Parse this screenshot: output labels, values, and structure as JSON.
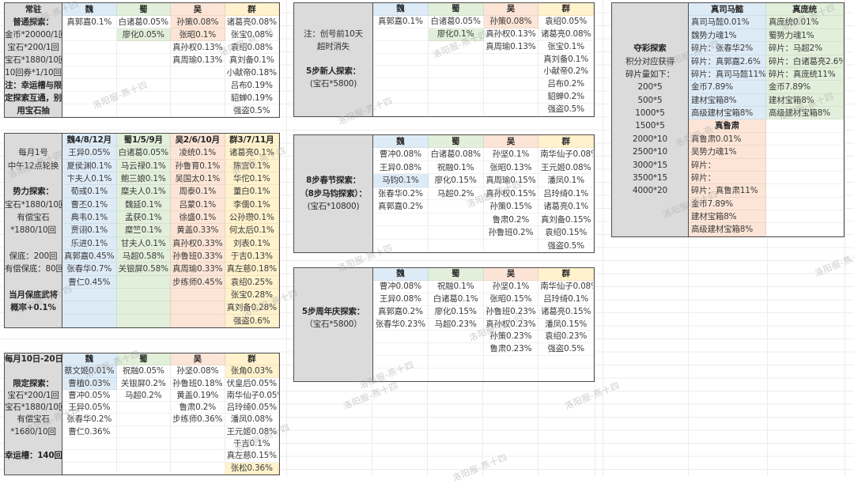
{
  "watermark": {
    "text": "洛阳服-燕十四"
  },
  "faction_colors": {
    "wei": "#DDEBF7",
    "shu": "#E2EFDA",
    "wu": "#FCE4D6",
    "qun": "#FFF2CC",
    "label": "#DBDBDB"
  },
  "blocks": [
    {
      "id": "permanent",
      "label_lines": [
        {
          "t": "常驻",
          "b": true
        },
        {
          "t": "普通探索：",
          "b": true
        },
        "金币*20000/1回",
        "宝石*200/1回",
        "宝石*1880/10回",
        "10回券*1/10回",
        {
          "t": "注：幸运槽与限",
          "b": true
        },
        {
          "t": "定探索互通，别",
          "b": true
        },
        {
          "t": "用宝石抽",
          "b": true
        }
      ],
      "columns": [
        {
          "cells": [
            {
              "t": "魏",
              "hl": "wei",
              "b": true
            },
            "真郭嘉0.1%",
            "",
            "",
            "",
            "",
            "",
            "",
            ""
          ]
        },
        {
          "cells": [
            {
              "t": "蜀",
              "hl": "shu",
              "b": true
            },
            "白诸葛0.05%",
            {
              "t": "廖化0.05%",
              "hl": "shu"
            },
            "",
            "",
            "",
            "",
            "",
            ""
          ]
        },
        {
          "cells": [
            {
              "t": "吴",
              "hl": "wu",
              "b": true
            },
            {
              "t": "孙策0.08%",
              "hl": "wu"
            },
            {
              "t": "张昭0.1%",
              "hl": "wu"
            },
            "真孙权0.13%",
            "真周瑜0.13%",
            "",
            "",
            "",
            ""
          ]
        },
        {
          "cells": [
            {
              "t": "群",
              "hl": "qun",
              "b": true
            },
            "诸葛亮0.08%",
            "张宝0.08%",
            "袁绍0.08%",
            "真刘备0.1%",
            "小献帝0.18%",
            "吕布0.19%",
            "貂蝉0.19%",
            "强盗0.5%"
          ]
        }
      ]
    },
    {
      "id": "faction",
      "label_lines": [
        "",
        "每月1号",
        "中午12点轮换",
        "",
        {
          "t": "势力探索：",
          "b": true
        },
        "宝石*1880/10回",
        "有偿宝石",
        "*1880/10回",
        "",
        "保底：200回",
        "有偿保底：80回",
        "",
        {
          "t": "当月保底武将",
          "b": true
        },
        {
          "t": "概率+0.1%",
          "b": true
        },
        ""
      ],
      "columns": [
        {
          "fill": "wei",
          "cells": [
            {
              "t": "魏4/8/12月",
              "hl": "wei",
              "b": true
            },
            {
              "t": "王异0.05%",
              "hl": "wei"
            },
            {
              "t": "夏侯渊0.1%",
              "hl": "wei"
            },
            {
              "t": "卞夫人0.1%",
              "hl": "wei"
            },
            {
              "t": "荀彧0.1%",
              "hl": "wei"
            },
            {
              "t": "曹丕0.1%",
              "hl": "wei"
            },
            {
              "t": "典韦0.1%",
              "hl": "wei"
            },
            {
              "t": "贾诩0.1%",
              "hl": "wei"
            },
            {
              "t": "乐进0.1%",
              "hl": "wei"
            },
            {
              "t": "真郭嘉0.45%",
              "hl": "wei"
            },
            {
              "t": "张春华0.7%",
              "hl": "wei"
            },
            {
              "t": "曹仁0.45%",
              "hl": "wei"
            },
            {
              "t": "",
              "hl": "wei"
            },
            {
              "t": "",
              "hl": "wei"
            },
            {
              "t": "",
              "hl": "wei"
            }
          ]
        },
        {
          "fill": "shu",
          "cells": [
            {
              "t": "蜀1/5/9月",
              "hl": "shu",
              "b": true
            },
            {
              "t": "白诸葛0.05%",
              "hl": "shu"
            },
            {
              "t": "马云禄0.1%",
              "hl": "shu"
            },
            {
              "t": "鲍三娘0.1%",
              "hl": "shu"
            },
            {
              "t": "糜夫人0.1%",
              "hl": "shu"
            },
            {
              "t": "魏延0.1%",
              "hl": "shu"
            },
            {
              "t": "孟获0.1%",
              "hl": "shu"
            },
            {
              "t": "糜竺0.1%",
              "hl": "shu"
            },
            {
              "t": "甘夫人0.1%",
              "hl": "shu"
            },
            {
              "t": "马超0.58%",
              "hl": "shu"
            },
            {
              "t": "关银屏0.58%",
              "hl": "shu"
            },
            {
              "t": "",
              "hl": "shu"
            },
            {
              "t": "",
              "hl": "shu"
            },
            {
              "t": "",
              "hl": "shu"
            },
            {
              "t": "",
              "hl": "shu"
            }
          ]
        },
        {
          "fill": "wu",
          "cells": [
            {
              "t": "吴2/6/10月",
              "hl": "wu",
              "b": true
            },
            {
              "t": "凌统0.1%",
              "hl": "wu"
            },
            {
              "t": "孙鲁育0.1%",
              "hl": "wu"
            },
            {
              "t": "吴国太0.1%",
              "hl": "wu"
            },
            {
              "t": "周泰0.1%",
              "hl": "wu"
            },
            {
              "t": "吕蒙0.1%",
              "hl": "wu"
            },
            {
              "t": "徐盛0.1%",
              "hl": "wu"
            },
            {
              "t": "黄盖0.33%",
              "hl": "wu"
            },
            {
              "t": "真孙权0.33%",
              "hl": "wu"
            },
            {
              "t": "孙鲁班0.33%",
              "hl": "wu"
            },
            {
              "t": "真周瑜0.33%",
              "hl": "wu"
            },
            {
              "t": "步练师0.45%",
              "hl": "wu"
            },
            {
              "t": "",
              "hl": "wu"
            },
            {
              "t": "",
              "hl": "wu"
            },
            {
              "t": "",
              "hl": "wu"
            }
          ]
        },
        {
          "fill": "qun",
          "cells": [
            {
              "t": "群3/7/11月",
              "hl": "qun",
              "b": true
            },
            {
              "t": "诸葛亮0.1%",
              "hl": "qun"
            },
            {
              "t": "陈宫0.1%",
              "hl": "qun"
            },
            {
              "t": "华佗0.1%",
              "hl": "qun"
            },
            {
              "t": "董白0.1%",
              "hl": "qun"
            },
            {
              "t": "李儒0.1%",
              "hl": "qun"
            },
            {
              "t": "公孙瓒0.1%",
              "hl": "qun"
            },
            {
              "t": "何太后0.1%",
              "hl": "qun"
            },
            {
              "t": "刘表0.1%",
              "hl": "qun"
            },
            {
              "t": "于吉0.13%",
              "hl": "qun"
            },
            {
              "t": "真左慈0.18%",
              "hl": "qun"
            },
            {
              "t": "袁绍0.25%",
              "hl": "qun"
            },
            {
              "t": "张宝0.28%",
              "hl": "qun"
            },
            {
              "t": "真刘备0.28%",
              "hl": "qun"
            },
            {
              "t": "强盗0.6%",
              "hl": "qun"
            }
          ]
        }
      ]
    },
    {
      "id": "limited",
      "label_lines": [
        {
          "t": "每月10日-20日",
          "b": true
        },
        "",
        {
          "t": "限定探索：",
          "b": true
        },
        "宝石*200/1回",
        "宝石*1880/10回",
        "有偿宝石",
        "*1680/10回",
        "",
        {
          "t": "幸运槽：140回",
          "b": true
        },
        ""
      ],
      "columns": [
        {
          "cells": [
            {
              "t": "魏",
              "hl": "wei",
              "b": true
            },
            {
              "t": "蔡文姬0.01%",
              "hl": "wei"
            },
            {
              "t": "曹植0.03%",
              "hl": "wei"
            },
            "曹冲0.05%",
            "王异0.05%",
            "张春华0.2%",
            "曹仁0.36%",
            "",
            "",
            ""
          ]
        },
        {
          "cells": [
            {
              "t": "蜀",
              "hl": "shu",
              "b": true
            },
            "祝融0.05%",
            "关银屏0.2%",
            "马超0.2%",
            "",
            "",
            "",
            "",
            "",
            ""
          ]
        },
        {
          "cells": [
            {
              "t": "吴",
              "hl": "wu",
              "b": true
            },
            "孙坚0.08%",
            "孙鲁班0.18%",
            "黄盖0.19%",
            "鲁肃0.2%",
            "步练师0.36%",
            "",
            "",
            "",
            ""
          ]
        },
        {
          "cells": [
            {
              "t": "群",
              "hl": "qun",
              "b": true
            },
            {
              "t": "张角0.03%",
              "hl": "qun"
            },
            "伏皇后0.05%",
            "南华仙子0.05%",
            "吕玲绮0.05%",
            "潘凤0.08%",
            "王元姬0.08%",
            "于吉0.1%",
            "真左慈0.15%",
            {
              "t": "张松0.36%",
              "hl": "qun"
            }
          ]
        }
      ]
    },
    {
      "id": "newbie",
      "label_lines": [
        "",
        "",
        "注：创号前10天",
        "超时消失",
        "",
        {
          "t": "5步新人探索：",
          "b": true
        },
        "(宝石*5800)",
        "",
        ""
      ],
      "columns": [
        {
          "cells": [
            {
              "t": "魏",
              "hl": "wei",
              "b": true
            },
            "真郭嘉0.1%",
            "",
            "",
            "",
            "",
            "",
            "",
            ""
          ]
        },
        {
          "cells": [
            {
              "t": "蜀",
              "hl": "shu",
              "b": true
            },
            "白诸葛0.05%",
            {
              "t": "廖化0.1%",
              "hl": "shu"
            },
            "",
            "",
            "",
            "",
            "",
            ""
          ]
        },
        {
          "cells": [
            {
              "t": "吴",
              "hl": "wu",
              "b": true
            },
            {
              "t": "孙策0.08%",
              "hl": "wu"
            },
            "真孙权0.13%",
            "真周瑜0.13%",
            "",
            "",
            "",
            "",
            ""
          ]
        },
        {
          "cells": [
            {
              "t": "群",
              "hl": "qun",
              "b": true
            },
            "袁绍0.05%",
            "诸葛亮0.08%",
            "张宝0.1%",
            "真刘备0.1%",
            "小献帝0.2%",
            "吕布0.2%",
            "貂蝉0.2%",
            "强盗0.5%"
          ]
        }
      ]
    },
    {
      "id": "spring",
      "label_lines": [
        "",
        "",
        "",
        {
          "t": "8步春节探索：",
          "b": true
        },
        {
          "t": "（8步马钧探索）：",
          "b": true
        },
        "(宝石*10800)",
        "",
        "",
        ""
      ],
      "columns": [
        {
          "cells": [
            {
              "t": "魏",
              "hl": "wei",
              "b": true
            },
            "曹冲0.08%",
            "王异0.08%",
            {
              "t": "马钧0.1%",
              "hl": "wei"
            },
            "张春华0.2%",
            "真郭嘉0.2%",
            "",
            "",
            ""
          ]
        },
        {
          "cells": [
            {
              "t": "蜀",
              "hl": "shu",
              "b": true
            },
            "白诸葛0.08%",
            "祝融0.1%",
            "廖化0.15%",
            "马超0.2%",
            "",
            "",
            "",
            ""
          ]
        },
        {
          "cells": [
            {
              "t": "吴",
              "hl": "wu",
              "b": true
            },
            "孙坚0.1%",
            "张昭0.13%",
            "真周瑜0.15%",
            "真孙权0.15%",
            "孙策0.15%",
            "鲁肃0.2%",
            "孙鲁班0.2%",
            ""
          ]
        },
        {
          "cells": [
            {
              "t": "群",
              "hl": "qun",
              "b": true
            },
            "南华仙子0.08%",
            "王元姬0.08%",
            "潘凤0.1%",
            "吕玲绮0.1%",
            "诸葛亮0.1%",
            "真刘备0.15%",
            "袁绍0.15%",
            "强盗0.5%"
          ]
        }
      ]
    },
    {
      "id": "anniversary",
      "label_lines": [
        "",
        "",
        "",
        {
          "t": "5步周年庆探索：",
          "b": true
        },
        "（宝石*5800）",
        "",
        "",
        "",
        ""
      ],
      "columns": [
        {
          "cells": [
            {
              "t": "魏",
              "hl": "wei",
              "b": true
            },
            "曹冲0.08%",
            "王异0.08%",
            "真郭嘉0.2%",
            "张春华0.23%",
            "",
            "",
            "",
            ""
          ]
        },
        {
          "cells": [
            {
              "t": "蜀",
              "hl": "shu",
              "b": true
            },
            "祝融0.1%",
            "白诸葛0.1%",
            "廖化0.15%",
            "马超0.23%",
            "",
            "",
            "",
            ""
          ]
        },
        {
          "cells": [
            {
              "t": "吴",
              "hl": "wu",
              "b": true
            },
            "孙坚0.1%",
            "张昭0.15%",
            "孙鲁班0.23%",
            "真孙权0.23%",
            "孙策0.23%",
            "鲁肃0.23%",
            "",
            ""
          ]
        },
        {
          "cells": [
            {
              "t": "群",
              "hl": "qun",
              "b": true
            },
            "南华仙子0.08%",
            "吕玲绮0.1%",
            "诸葛亮0.15%",
            "潘凤0.15%",
            "袁绍0.23%",
            "强盗0.5%",
            "",
            ""
          ]
        }
      ]
    },
    {
      "id": "duocai",
      "label_lines": [
        "",
        "",
        "",
        {
          "t": "夺彩探索",
          "b": true
        },
        "积分对应获得",
        "碎片量如下：",
        "200*5",
        "500*5",
        "1000*5",
        "1500*5",
        "2000*10",
        "2500*10",
        "3000*15",
        "3500*15",
        "4000*20",
        "",
        "",
        ""
      ],
      "columns": [
        {
          "align": "left",
          "cells": [
            {
              "t": "真司马懿",
              "hl": "wei",
              "b": true,
              "al": "center"
            },
            {
              "t": "真司马懿0.01%",
              "hl": "wei"
            },
            {
              "t": "魏势力魂1%",
              "hl": "wei"
            },
            {
              "t": "碎片：张春华2%",
              "hl": "wei"
            },
            {
              "t": "碎片：真郭嘉2.6%",
              "hl": "wei"
            },
            {
              "t": "碎片：真司马懿11%",
              "hl": "wei"
            },
            {
              "t": "金币7.89%",
              "hl": "wei"
            },
            {
              "t": "建材宝箱8%",
              "hl": "wei"
            },
            {
              "t": "高级建材宝箱8%",
              "hl": "wei"
            },
            {
              "t": "真鲁肃",
              "hl": "wu",
              "b": true,
              "al": "center"
            },
            {
              "t": "真鲁肃0.01%",
              "hl": "wu"
            },
            {
              "t": "吴势力魂1%",
              "hl": "wu"
            },
            {
              "t": "碎片：",
              "hl": "wu"
            },
            {
              "t": "碎片：",
              "hl": "wu"
            },
            {
              "t": "碎片：真鲁肃11%",
              "hl": "wu"
            },
            {
              "t": "金币7.89%",
              "hl": "wu"
            },
            {
              "t": "建材宝箱8%",
              "hl": "wu"
            },
            {
              "t": "高级建材宝箱8%",
              "hl": "wu"
            }
          ]
        },
        {
          "align": "left",
          "cells": [
            {
              "t": "真庞统",
              "hl": "shu",
              "b": true,
              "al": "center"
            },
            {
              "t": "真庞统0.01%",
              "hl": "shu"
            },
            {
              "t": "蜀势力魂1%",
              "hl": "shu"
            },
            {
              "t": "碎片：马超2%",
              "hl": "shu"
            },
            {
              "t": "碎片：白诸葛亮2.6%",
              "hl": "shu"
            },
            {
              "t": "碎片：真庞统11%",
              "hl": "shu"
            },
            {
              "t": "金币7.89%",
              "hl": "shu"
            },
            {
              "t": "建材宝箱8%",
              "hl": "shu"
            },
            {
              "t": "高级建材宝箱8%",
              "hl": "shu"
            },
            "",
            "",
            "",
            "",
            "",
            "",
            "",
            "",
            ""
          ]
        }
      ]
    }
  ]
}
